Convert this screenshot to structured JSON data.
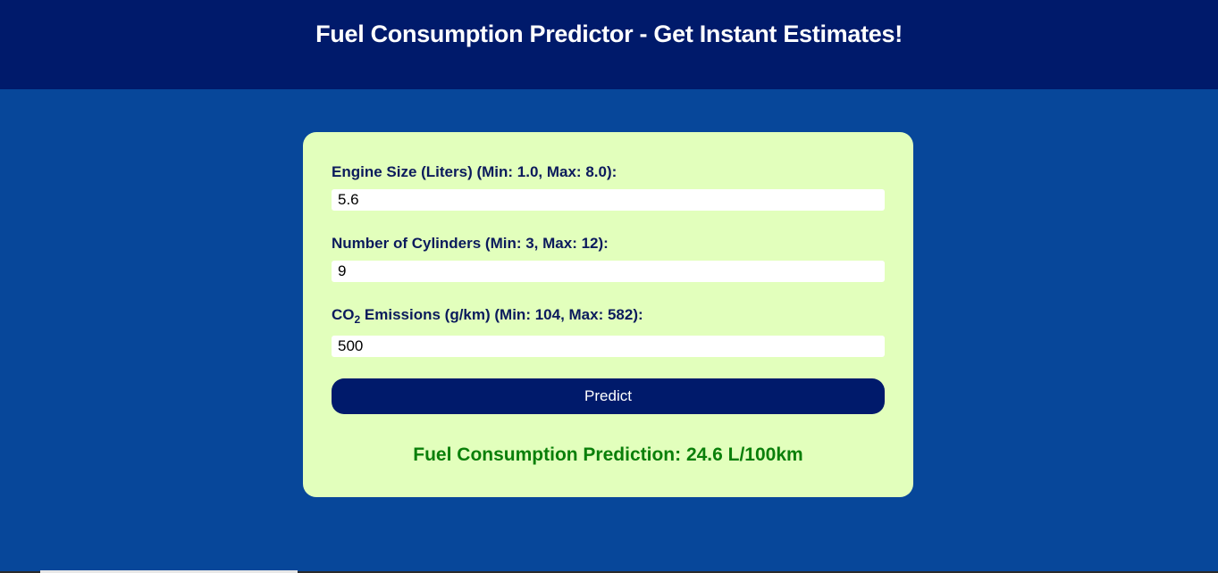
{
  "header": {
    "title": "Fuel Consumption Predictor - Get Instant Estimates!"
  },
  "form": {
    "engine_size": {
      "label": "Engine Size (Liters) (Min: 1.0, Max: 8.0):",
      "value": "5.6"
    },
    "cylinders": {
      "label": "Number of Cylinders (Min: 3, Max: 12):",
      "value": "9"
    },
    "co2": {
      "label_prefix": "CO",
      "label_subscript": "2",
      "label_suffix": " Emissions (g/km) (Min: 104, Max: 582):",
      "value": "500"
    },
    "predict_label": "Predict"
  },
  "result": {
    "text": "Fuel Consumption Prediction: 24.6 L/100km"
  },
  "colors": {
    "page_bg": "#07479a",
    "header_bg": "#001a6b",
    "card_bg": "#e2ffbc",
    "result_text": "#0a7f0a"
  }
}
